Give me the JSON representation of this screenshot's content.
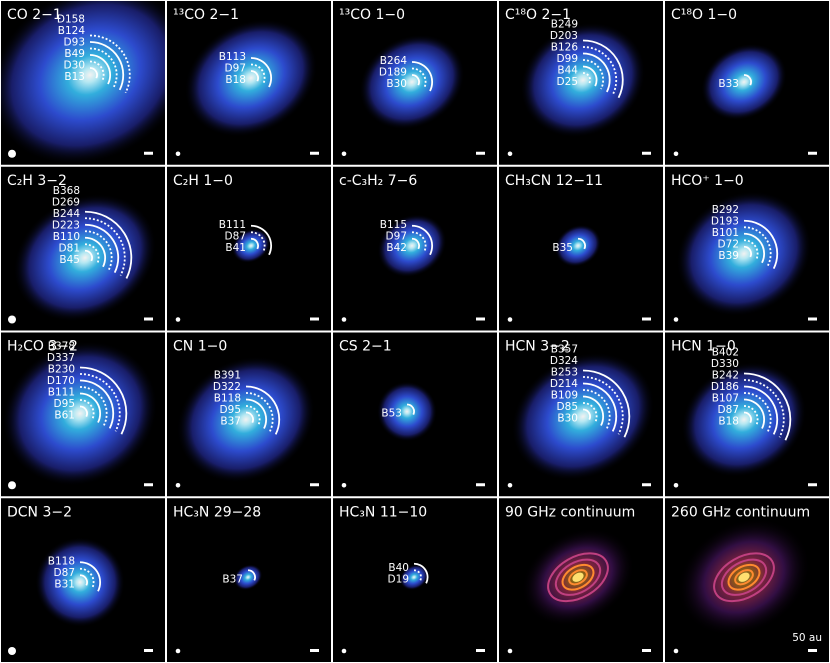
{
  "panels": [
    {
      "title": "CO 2−1",
      "labels": [
        "D158",
        "B124",
        "D93",
        "B49",
        "D30",
        "B13"
      ]
    },
    {
      "title": "¹³CO 2−1",
      "labels": [
        "B113",
        "D97",
        "B18"
      ]
    },
    {
      "title": "¹³CO 1−0",
      "labels": [
        "B264",
        "D189",
        "B30"
      ]
    },
    {
      "title": "C¹⁸O 2−1",
      "labels": [
        "B249",
        "D203",
        "B126",
        "D99",
        "B44",
        "D25"
      ]
    },
    {
      "title": "C¹⁸O 1−0",
      "labels": [
        "B33"
      ]
    },
    {
      "title": "C₂H 3−2",
      "labels": [
        "B368",
        "D269",
        "B244",
        "D223",
        "B110",
        "D81",
        "B45"
      ]
    },
    {
      "title": "C₂H 1−0",
      "labels": [
        "B111",
        "D87",
        "B41"
      ]
    },
    {
      "title": "c-C₃H₂ 7−6",
      "labels": [
        "B115",
        "D97",
        "B42"
      ]
    },
    {
      "title": "CH₃CN 12−11",
      "labels": [
        "B35"
      ]
    },
    {
      "title": "HCO⁺ 1−0",
      "labels": [
        "B292",
        "D193",
        "B101",
        "D72",
        "B39"
      ]
    },
    {
      "title": "H₂CO 3−2",
      "labels": [
        "B378",
        "D337",
        "B230",
        "D170",
        "B111",
        "D95",
        "B61"
      ]
    },
    {
      "title": "CN 1−0",
      "labels": [
        "B391",
        "D322",
        "B118",
        "D95",
        "B37"
      ]
    },
    {
      "title": "CS 2−1",
      "labels": [
        "B53"
      ]
    },
    {
      "title": "HCN 3−2",
      "labels": [
        "B357",
        "D324",
        "B253",
        "D214",
        "B109",
        "D85",
        "B30"
      ]
    },
    {
      "title": "HCN 1−0",
      "labels": [
        "B402",
        "D330",
        "B242",
        "D186",
        "B107",
        "D87",
        "B18"
      ]
    },
    {
      "title": "DCN 3−2",
      "labels": [
        "B118",
        "D87",
        "B31"
      ]
    },
    {
      "title": "HC₃N 29−28",
      "labels": [
        "B37"
      ]
    },
    {
      "title": "HC₃N 11−10",
      "labels": [
        "B40",
        "D19"
      ]
    },
    {
      "title": "90 GHz continuum"
    },
    {
      "title": "260 GHz continuum"
    }
  ],
  "scale_label": "50 au"
}
